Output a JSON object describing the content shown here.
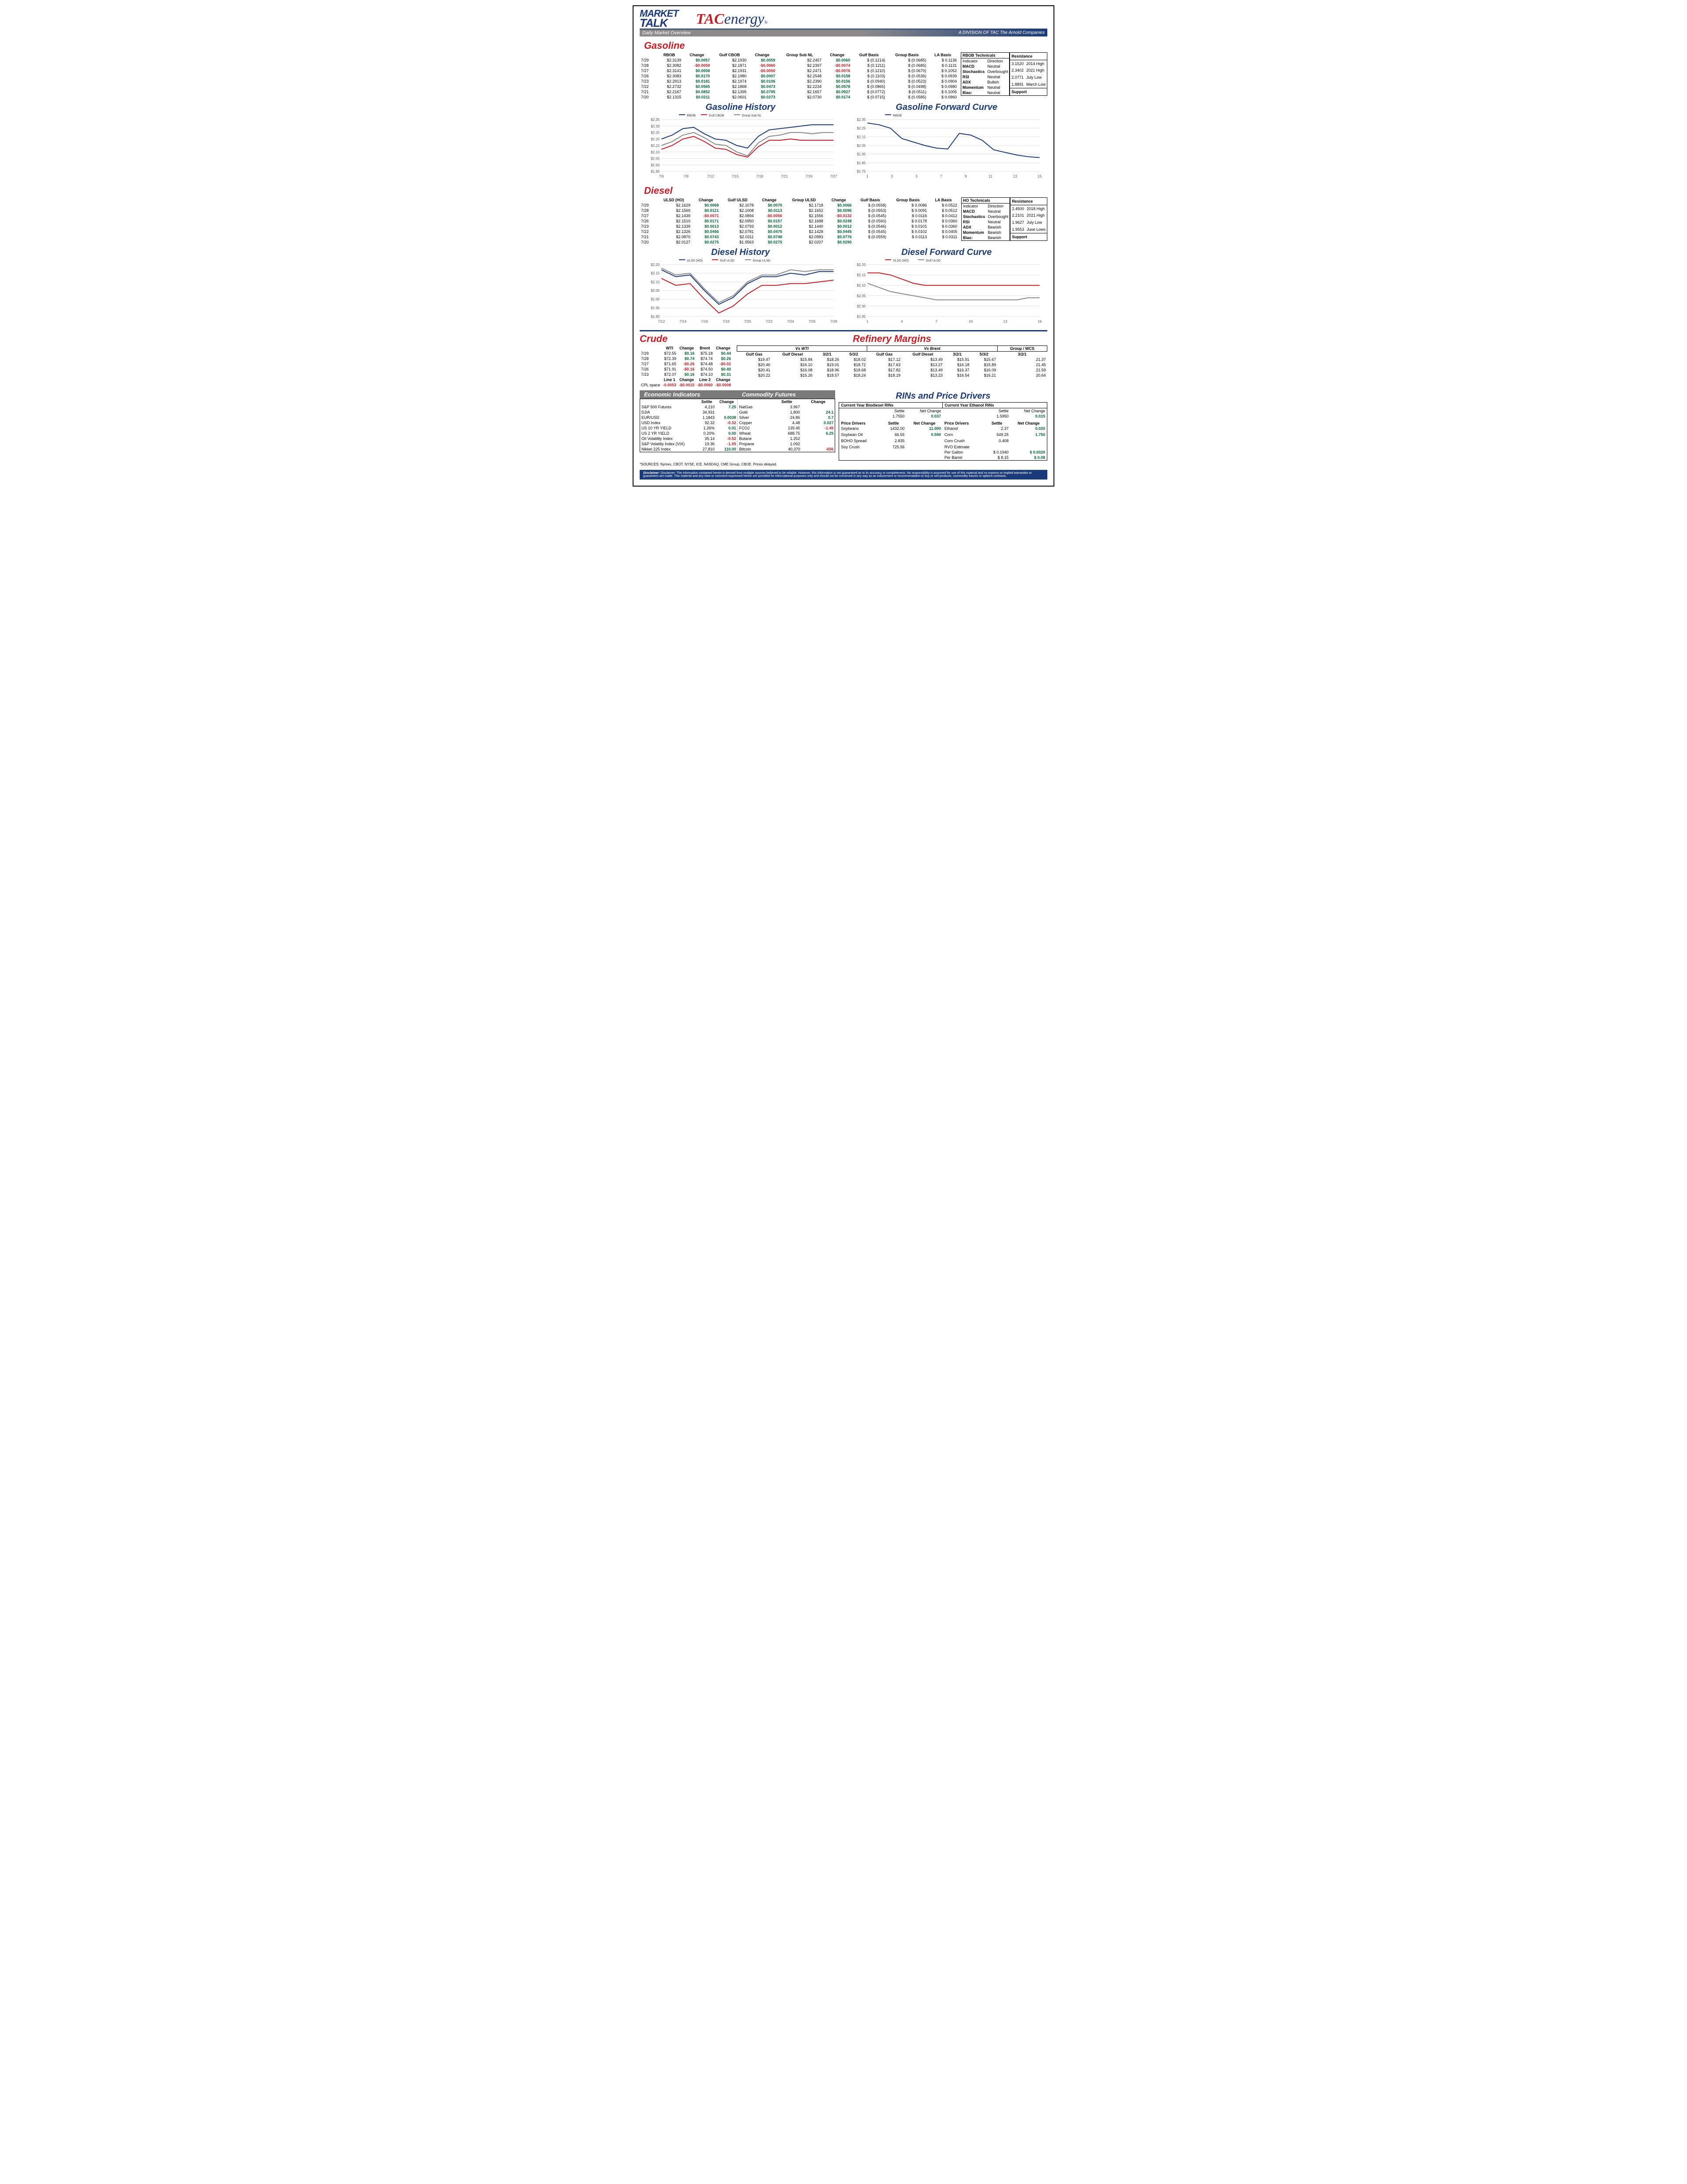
{
  "header": {
    "market": "MARKET",
    "talk": "TALK",
    "subtitle": "Daily Market Overview",
    "tac_red": "TAC",
    "tac_blue": "energy",
    "division": "A DIVISION OF TAC The Arnold Companies"
  },
  "gasoline": {
    "title": "Gasoline",
    "cols": [
      "",
      "RBOB",
      "Change",
      "Gulf CBOB",
      "Change",
      "Group Sub NL",
      "Change",
      "Gulf Basis",
      "Group Basis",
      "LA Basis"
    ],
    "rows": [
      [
        "7/29",
        "$2.3139",
        "$0.0057",
        "$2.1930",
        "$0.0059",
        "$2.2457",
        "$0.0060",
        "$ (0.1214)",
        "$    (0.0685)",
        "$    0.1136"
      ],
      [
        "7/28",
        "$2.3082",
        "-$0.0059",
        "$2.1871",
        "-$0.0060",
        "$2.2397",
        "-$0.0074",
        "$ (0.1211)",
        "$    (0.0685)",
        "$    0.1131"
      ],
      [
        "7/27",
        "$2.3141",
        "$0.0058",
        "$2.1931",
        "-$0.0050",
        "$2.2471",
        "-$0.0076",
        "$ (0.1210)",
        "$    (0.0670)",
        "$    0.1052"
      ],
      [
        "7/26",
        "$2.3083",
        "$0.0170",
        "$2.1980",
        "$0.0007",
        "$2.2548",
        "$0.0158",
        "$ (0.1103)",
        "$    (0.0536)",
        "$    0.0939"
      ],
      [
        "7/23",
        "$2.2913",
        "$0.0181",
        "$2.1974",
        "$0.0106",
        "$2.2390",
        "$0.0156",
        "$ (0.0940)",
        "$    (0.0523)",
        "$    0.0904"
      ],
      [
        "7/22",
        "$2.2732",
        "$0.0565",
        "$2.1868",
        "$0.0473",
        "$2.2234",
        "$0.0578",
        "$ (0.0865)",
        "$    (0.0498)",
        "$    0.0980"
      ],
      [
        "7/21",
        "$2.2167",
        "$0.0852",
        "$2.1395",
        "$0.0795",
        "$2.1657",
        "$0.0927",
        "$ (0.0772)",
        "$    (0.0511)",
        "$    0.1005"
      ],
      [
        "7/20",
        "$2.1315",
        "$0.0211",
        "$2.0601",
        "$0.0273",
        "$2.0730",
        "$0.0174",
        "$ (0.0715)",
        "$    (0.0585)",
        "$    0.0960"
      ]
    ],
    "tech_title": "RBOB Technicals",
    "tech_cols": [
      "Indicator",
      "Direction"
    ],
    "tech_rows": [
      [
        "MACD",
        "Neutral"
      ],
      [
        "Stochastics",
        "Overbought"
      ],
      [
        "RSI",
        "Neutral"
      ],
      [
        "ADX",
        "Bullish"
      ],
      [
        "Momentum",
        "Neutral"
      ],
      [
        "Bias:",
        "Neutral"
      ]
    ],
    "res_title": "Resistance",
    "sup_title": "Support",
    "res_rows": [
      [
        "3.1520",
        "2014 High"
      ],
      [
        "2.3402",
        "2021 High"
      ],
      [
        "2.0771",
        "July Low"
      ],
      [
        "1.8891",
        "March Low"
      ]
    ],
    "history_title": "Gasoline History",
    "forward_title": "Gasoline Forward Curve",
    "history": {
      "legend": [
        "RBOB",
        "Gulf CBOB",
        "Group Sub NL"
      ],
      "legend_colors": [
        "#1a3a7a",
        "#c71d24",
        "#888888"
      ],
      "xticks": [
        "7/6",
        "7/9",
        "7/12",
        "7/15",
        "7/18",
        "7/21",
        "7/24",
        "7/27"
      ],
      "ylim": [
        1.95,
        2.35
      ],
      "ytick_step": 0.05,
      "grid": "#e0e0e0",
      "series": [
        [
          2.2,
          2.23,
          2.28,
          2.29,
          2.24,
          2.2,
          2.19,
          2.15,
          2.13,
          2.22,
          2.27,
          2.28,
          2.29,
          2.3,
          2.31,
          2.31,
          2.31
        ],
        [
          2.12,
          2.15,
          2.2,
          2.22,
          2.18,
          2.13,
          2.12,
          2.08,
          2.06,
          2.14,
          2.19,
          2.19,
          2.2,
          2.19,
          2.19,
          2.19,
          2.19
        ],
        [
          2.15,
          2.18,
          2.23,
          2.25,
          2.21,
          2.16,
          2.15,
          2.1,
          2.07,
          2.17,
          2.22,
          2.23,
          2.25,
          2.25,
          2.24,
          2.25,
          2.25
        ]
      ]
    },
    "forward": {
      "legend": [
        "RBOB"
      ],
      "legend_colors": [
        "#1a3a7a"
      ],
      "xticks": [
        "1",
        "3",
        "5",
        "7",
        "9",
        "11",
        "13",
        "15"
      ],
      "ylim": [
        1.75,
        2.35
      ],
      "ytick_step": 0.1,
      "grid": "#e0e0e0",
      "series": [
        [
          2.31,
          2.29,
          2.25,
          2.13,
          2.09,
          2.05,
          2.02,
          2.01,
          2.19,
          2.17,
          2.11,
          2.0,
          1.97,
          1.94,
          1.92,
          1.91
        ]
      ]
    }
  },
  "diesel": {
    "title": "Diesel",
    "cols": [
      "",
      "ULSD (HO)",
      "Change",
      "Gulf ULSD",
      "Change",
      "Group ULSD",
      "Change",
      "Gulf Basis",
      "Group Basis",
      "LA Basis"
    ],
    "rows": [
      [
        "7/29",
        "$2.1629",
        "$0.0069",
        "$2.1078",
        "$0.0070",
        "$2.1718",
        "$0.0066",
        "$ (0.0558)",
        "$    0.0086",
        "$    0.0522"
      ],
      [
        "7/28",
        "$2.1560",
        "$0.0121",
        "$2.1008",
        "$0.0113",
        "$2.1652",
        "$0.0096",
        "$ (0.0553)",
        "$    0.0091",
        "$    0.0512"
      ],
      [
        "7/27",
        "$2.1439",
        "-$0.0071",
        "$2.0894",
        "-$0.0056",
        "$2.1556",
        "-$0.0132",
        "$ (0.0545)",
        "$    0.0116",
        "$    0.0412"
      ],
      [
        "7/26",
        "$2.1510",
        "$0.0171",
        "$2.0950",
        "$0.0157",
        "$2.1688",
        "$0.0248",
        "$ (0.0560)",
        "$    0.0178",
        "$    0.0360"
      ],
      [
        "7/23",
        "$2.1339",
        "$0.0013",
        "$2.0793",
        "$0.0012",
        "$2.1440",
        "$0.0012",
        "$ (0.0546)",
        "$    0.0101",
        "$    0.0360"
      ],
      [
        "7/22",
        "$2.1326",
        "$0.0456",
        "$2.0781",
        "$0.0470",
        "$2.1428",
        "$0.0445",
        "$ (0.0545)",
        "$    0.0102",
        "$    0.0405"
      ],
      [
        "7/21",
        "$2.0870",
        "$0.0743",
        "$2.0311",
        "$0.0748",
        "$2.0983",
        "$0.0776",
        "$ (0.0559)",
        "$    0.0113",
        "$    0.0311"
      ],
      [
        "7/20",
        "$2.0127",
        "$0.0275",
        "$1.9563",
        "$0.0275",
        "$2.0207",
        "$0.0290",
        "",
        "",
        ""
      ]
    ],
    "tech_title": "HO Technicals",
    "tech_rows": [
      [
        "MACD",
        "Neutral"
      ],
      [
        "Stochastics",
        "Overbought"
      ],
      [
        "RSI",
        "Neutral"
      ],
      [
        "ADX",
        "Bearish"
      ],
      [
        "Momentum",
        "Bearish"
      ],
      [
        "Bias:",
        "Bearish"
      ]
    ],
    "res_rows": [
      [
        "2.4500",
        "2018 High"
      ],
      [
        "2.2101",
        "2021 High"
      ],
      [
        "1.9627",
        "July Low"
      ],
      [
        "1.9553",
        "June Lows"
      ]
    ],
    "history_title": "Diesel History",
    "forward_title": "Diesel Forward Curve",
    "history": {
      "legend": [
        "ULSD (HO)",
        "Gulf ULSD",
        "Group ULSD"
      ],
      "legend_colors": [
        "#1a3a7a",
        "#c71d24",
        "#888888"
      ],
      "xticks": [
        "7/12",
        "7/14",
        "7/16",
        "7/18",
        "7/20",
        "7/22",
        "7/24",
        "7/26",
        "7/28"
      ],
      "ylim": [
        1.9,
        2.2
      ],
      "ytick_step": 0.05,
      "grid": "#e0e0e0",
      "series": [
        [
          2.17,
          2.13,
          2.14,
          2.05,
          1.97,
          2.01,
          2.09,
          2.13,
          2.13,
          2.15,
          2.14,
          2.16,
          2.16
        ],
        [
          2.12,
          2.08,
          2.09,
          2.0,
          1.92,
          1.96,
          2.03,
          2.08,
          2.08,
          2.09,
          2.09,
          2.1,
          2.11
        ],
        [
          2.18,
          2.14,
          2.15,
          2.06,
          1.98,
          2.02,
          2.1,
          2.14,
          2.14,
          2.17,
          2.16,
          2.17,
          2.17
        ]
      ]
    },
    "forward": {
      "legend": [
        "ULSD (HO)",
        "Gulf ULSD"
      ],
      "legend_colors": [
        "#c71d24",
        "#888888"
      ],
      "xticks": [
        "1",
        "4",
        "7",
        "10",
        "13",
        "16"
      ],
      "ylim": [
        1.95,
        2.2
      ],
      "ytick_step": 0.05,
      "grid": "#e0e0e0",
      "series": [
        [
          2.16,
          2.16,
          2.15,
          2.13,
          2.11,
          2.1,
          2.1,
          2.1,
          2.1,
          2.1,
          2.1,
          2.1,
          2.1,
          2.1,
          2.1,
          2.1
        ],
        [
          2.11,
          2.09,
          2.07,
          2.06,
          2.05,
          2.04,
          2.03,
          2.03,
          2.03,
          2.03,
          2.03,
          2.03,
          2.03,
          2.03,
          2.04,
          2.04
        ]
      ]
    }
  },
  "crude": {
    "title": "Crude",
    "cols": [
      "",
      "WTI",
      "Change",
      "Brent",
      "Change"
    ],
    "rows": [
      [
        "7/29",
        "$72.55",
        "$0.16",
        "$75.18",
        "$0.44"
      ],
      [
        "7/28",
        "$72.39",
        "$0.74",
        "$74.74",
        "$0.26"
      ],
      [
        "7/27",
        "$71.65",
        "-$0.26",
        "$74.48",
        "-$0.02"
      ],
      [
        "7/26",
        "$71.91",
        "-$0.16",
        "$74.50",
        "$0.40"
      ],
      [
        "7/23",
        "$72.07",
        "$0.16",
        "$74.10",
        "$0.31"
      ]
    ],
    "cpl_row": [
      "CPL space",
      "-0.0053",
      "-$0.0015",
      "-$0.0060",
      "-$0.0008"
    ],
    "cpl_hdr": [
      "",
      "Line 1",
      "Change",
      "Line 2",
      "Change"
    ]
  },
  "refinery": {
    "title": "Refinery Margins",
    "wti_hdr": "Vs WTI",
    "brent_hdr": "Vs Brent",
    "grp_hdr": "Group / WCS",
    "cols": [
      "Gulf Gas",
      "Gulf Diesel",
      "3/2/1",
      "5/3/2",
      "Gulf Gas",
      "Gulf Diesel",
      "3/2/1",
      "5/3/2",
      "3/2/1"
    ],
    "rows": [
      [
        "$19.47",
        "$15.84",
        "$18.26",
        "$18.02",
        "$17.12",
        "$13.49",
        "$15.91",
        "$15.67",
        "21.37"
      ],
      [
        "$20.46",
        "$16.10",
        "$19.01",
        "$18.72",
        "$17.63",
        "$13.27",
        "$16.18",
        "$15.89",
        "21.45"
      ],
      [
        "$20.41",
        "$16.08",
        "$18.96",
        "$18.68",
        "$17.82",
        "$13.49",
        "$16.37",
        "$16.09",
        "21.59"
      ],
      [
        "$20.22",
        "$15.26",
        "$18.57",
        "$18.24",
        "$18.19",
        "$13.23",
        "$16.54",
        "$16.21",
        "20.64"
      ]
    ]
  },
  "econ": {
    "title": "Economic Indicators",
    "cols": [
      "",
      "Settle",
      "Change"
    ],
    "rows": [
      [
        "S&P 500 Futures",
        "4,210",
        "7.25"
      ],
      [
        "DJIA",
        "34,931",
        ""
      ],
      [
        "EUR/USD",
        "1.1843",
        "0.0038"
      ],
      [
        "USD Index",
        "92.32",
        "-0.32"
      ],
      [
        "US 10 YR YIELD",
        "1.26%",
        "0.01"
      ],
      [
        "US 2 YR YIELD",
        "0.20%",
        "0.00"
      ],
      [
        "Oil Volatility Index",
        "35.14",
        "-0.52"
      ],
      [
        "S&P Volatiliy Index (VIX)",
        "19.36",
        "-1.05"
      ],
      [
        "Nikkei 225 Index",
        "27,810",
        "110.00"
      ]
    ]
  },
  "comm": {
    "title": "Commodity Futures",
    "cols": [
      "",
      "Settle",
      "Change"
    ],
    "rows": [
      [
        "NatGas",
        "3.967",
        ""
      ],
      [
        "Gold",
        "1,800",
        "24.1"
      ],
      [
        "Silver",
        "24.86",
        "0.7"
      ],
      [
        "Copper",
        "4.48",
        "0.027"
      ],
      [
        "FCOJ",
        "139.45",
        "-1.45"
      ],
      [
        "Wheat",
        "688.75",
        "6.25"
      ],
      [
        "Butane",
        "1.252",
        ""
      ],
      [
        "Propane",
        "1.092",
        ""
      ],
      [
        "Bitcoin",
        "40,370",
        "-656"
      ]
    ]
  },
  "rins": {
    "title": "RINs and Price Drivers",
    "bio_hdr": "Current Year Biodiesel RINs",
    "eth_hdr": "Current Year Ethanol RINs",
    "bio_settle": "1.7550",
    "bio_chg": "0.037",
    "eth_settle": "1.5950",
    "eth_chg": "0.015",
    "drivers_hdr": "Price Drivers",
    "left": [
      [
        "Soybeans",
        "1432.00",
        "11.000"
      ],
      [
        "",
        ""
      ],
      [
        "Soybean Oil",
        "66.55",
        "0.590"
      ],
      [
        "",
        "",
        ""
      ],
      [
        "BOHO Spread",
        "2.835",
        ""
      ],
      [
        "",
        "",
        ""
      ],
      [
        "Soy Crush",
        "725.56",
        ""
      ]
    ],
    "right": [
      [
        "Ethanol",
        "2.37",
        "0.020"
      ],
      [
        "",
        "",
        ""
      ],
      [
        "Corn",
        "549.25",
        "1.750"
      ],
      [
        "",
        "",
        ""
      ],
      [
        "Corn Crush",
        "0.408",
        ""
      ],
      [
        "",
        "",
        ""
      ],
      [
        "RVO Estimate",
        "",
        ""
      ],
      [
        "Per Gallon",
        "$    0.1940",
        "$        0.0020"
      ],
      [
        "Per Barrel",
        "$        8.15",
        "$          0.08"
      ]
    ]
  },
  "sources": "*SOURCES: Nymex, CBOT, NYSE, ICE, NASDAQ, CME Group, CBOE.    Prices delayed.",
  "disclaimer": "Disclaimer: The information contained herein is derived from multiple sources believed to be reliable. However, this information is not guaranteed as to its accuracy or completeness. No responsibility is assumed for use of this material and no express or implied warranties or guarantees are made. This material and any view or comment expressed herein are provided for informational purposes only and should not be construed in any way as an inducement or recommendation to buy or sell products, commodity futures or options contracts."
}
